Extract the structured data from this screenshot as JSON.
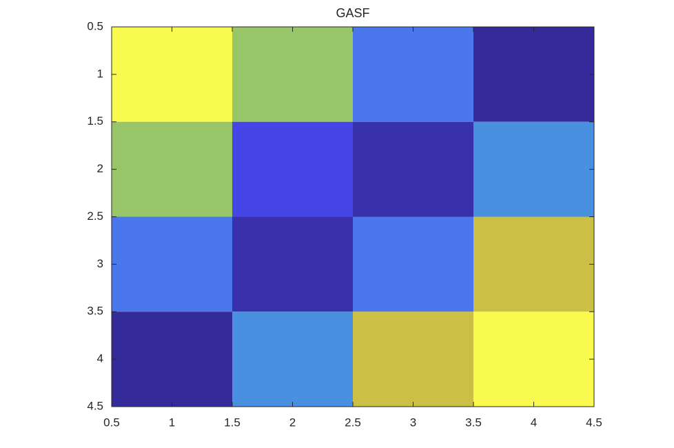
{
  "chart_data": {
    "type": "heatmap",
    "title": "GASF",
    "x": [
      1,
      2,
      3,
      4
    ],
    "y": [
      1,
      2,
      3,
      4
    ],
    "z": [
      [
        1,
        0.4,
        -0.44,
        -1
      ],
      [
        0.4,
        -0.75,
        -0.94,
        -0.25
      ],
      [
        -0.44,
        -0.94,
        -0.44,
        0.75
      ],
      [
        -1,
        -0.25,
        0.75,
        1
      ]
    ],
    "clim": [
      -1,
      1
    ],
    "colormap": [
      "#352a99",
      "#4646e6",
      "#4a6ff0",
      "#4a90e0",
      "#5aa8c8",
      "#80c080",
      "#a8c858",
      "#cbbf45",
      "#f9fa4f"
    ],
    "xlim": [
      0.5,
      4.5
    ],
    "ylim": [
      4.5,
      0.5
    ],
    "xticks": [
      0.5,
      1,
      1.5,
      2,
      2.5,
      3,
      3.5,
      4,
      4.5
    ],
    "yticks": [
      0.5,
      1,
      1.5,
      2,
      2.5,
      3,
      3.5,
      4,
      4.5
    ]
  }
}
